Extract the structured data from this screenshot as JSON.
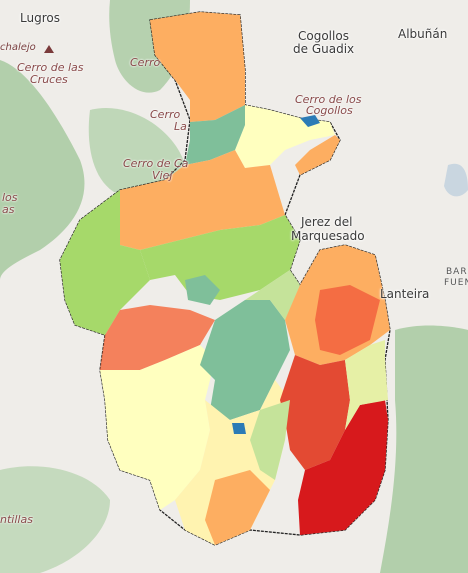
{
  "map": {
    "labels": {
      "lugros": "Lugros",
      "cogollos": "Cogollos",
      "de_guadix": "de Guadix",
      "albunan": "Albuñán",
      "chalejo": "chalejo",
      "cerro_de_las": "Cerro de las",
      "cruces": "Cruces",
      "cerro_top": "Cerro",
      "cerro_de_los": "Cerro de los",
      "cogollos_peak": "Cogollos",
      "cerro_la_1": "Cerro",
      "cerro_la_2": "La",
      "cerro_de_ca": "Cerro de Ca",
      "viej": "Viej",
      "los_1": "los",
      "los_2": "as",
      "jerez_1": "Jerez del",
      "jerez_2": "Marquesado",
      "lanteira": "Lanteira",
      "bar": "BAR",
      "fuen": "FUEN",
      "ntillas": "ntillas"
    },
    "colors": {
      "background": "#efede9",
      "terrain_green": "#a7c9a0",
      "boundary": "#222222",
      "class_1": "#2c7bb6",
      "class_2": "#7fbf9a",
      "class_3": "#a6d96a",
      "class_4": "#ffffbf",
      "class_5": "#fdae61",
      "class_6": "#f46d43",
      "class_7": "#d7191c"
    }
  }
}
